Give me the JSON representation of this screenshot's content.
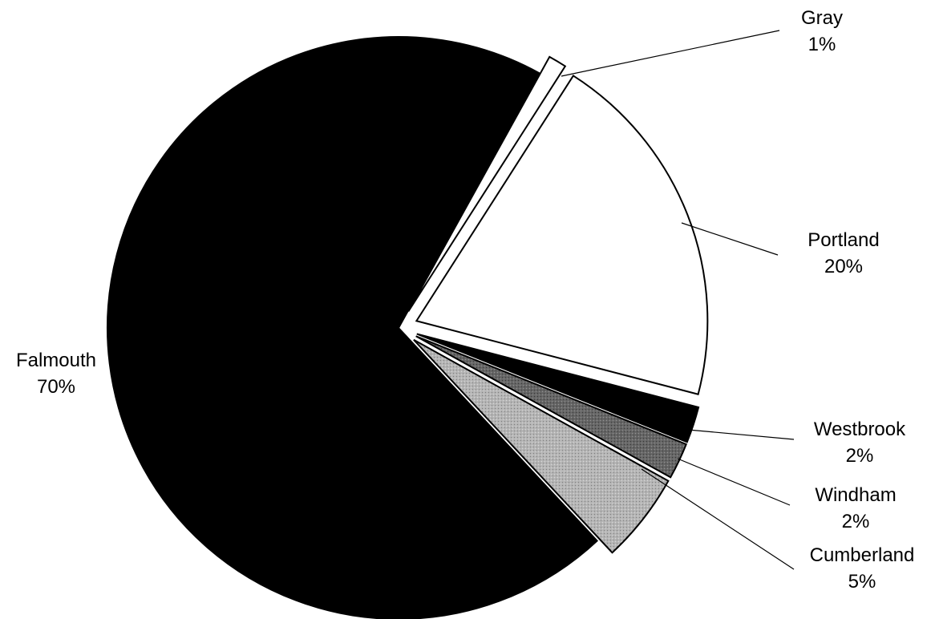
{
  "chart_data": {
    "type": "pie",
    "start_angle_deg": 61,
    "slices": [
      {
        "name": "Gray",
        "value": 1,
        "value_label": "1%",
        "fill": "#ffffff",
        "exploded": true
      },
      {
        "name": "Portland",
        "value": 20,
        "value_label": "20%",
        "fill": "#ffffff",
        "exploded": true
      },
      {
        "name": "Westbrook",
        "value": 2,
        "value_label": "2%",
        "fill": "#000000",
        "exploded": true
      },
      {
        "name": "Windham",
        "value": 2,
        "value_label": "2%",
        "fill": "#555555",
        "exploded": true
      },
      {
        "name": "Cumberland",
        "value": 5,
        "value_label": "5%",
        "fill": "#a9a9a9",
        "exploded": true
      },
      {
        "name": "Falmouth",
        "value": 70,
        "value_label": "70%",
        "fill": "#000000",
        "exploded": false
      }
    ]
  }
}
